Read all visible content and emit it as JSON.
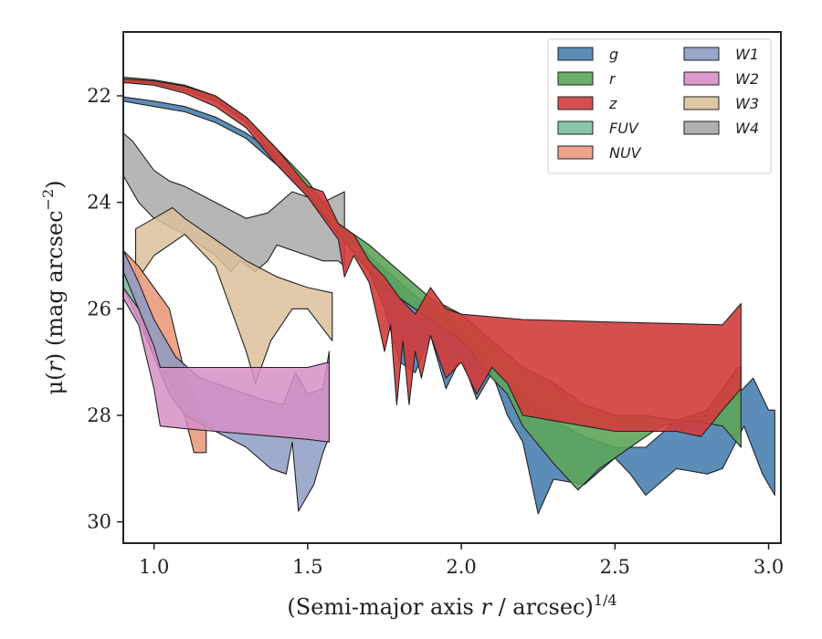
{
  "chart_data": {
    "type": "area",
    "xlabel_main": "(Semi-major axis ",
    "xlabel_var": "r",
    "xlabel_rest": " / arcsec)",
    "xlabel_sup": "1/4",
    "ylabel_main": "μ(",
    "ylabel_var": "r",
    "ylabel_rest": ") (mag arcsec",
    "ylabel_sup": "−2",
    "ylabel_end": ")",
    "xlim": [
      0.9,
      3.04
    ],
    "ylim": [
      30.4,
      20.8
    ],
    "x_ticks": [
      1.0,
      1.5,
      2.0,
      2.5,
      3.0
    ],
    "x_tick_labels": [
      "1.0",
      "1.5",
      "2.0",
      "2.5",
      "3.0"
    ],
    "y_ticks": [
      22,
      24,
      26,
      28,
      30
    ],
    "y_tick_labels": [
      "22",
      "24",
      "26",
      "28",
      "30"
    ],
    "legend_position": "top-right",
    "series": [
      {
        "name": "W4",
        "color": "#a9a9a9",
        "alpha": 0.85,
        "upper": [
          [
            0.9,
            22.7
          ],
          [
            0.93,
            22.85
          ],
          [
            1.0,
            23.4
          ],
          [
            1.05,
            23.6
          ],
          [
            1.1,
            23.7
          ],
          [
            1.2,
            24.0
          ],
          [
            1.3,
            24.3
          ],
          [
            1.37,
            24.2
          ],
          [
            1.45,
            23.8
          ],
          [
            1.55,
            24.0
          ],
          [
            1.62,
            23.8
          ]
        ],
        "lower": [
          [
            0.9,
            23.5
          ],
          [
            0.95,
            24.0
          ],
          [
            1.0,
            24.3
          ],
          [
            1.1,
            24.6
          ],
          [
            1.2,
            25.0
          ],
          [
            1.25,
            25.3
          ],
          [
            1.28,
            25.1
          ],
          [
            1.33,
            25.3
          ],
          [
            1.37,
            25.1
          ],
          [
            1.4,
            24.8
          ],
          [
            1.45,
            24.9
          ],
          [
            1.5,
            25.0
          ],
          [
            1.55,
            25.1
          ],
          [
            1.6,
            25.1
          ],
          [
            1.62,
            25.2
          ]
        ]
      },
      {
        "name": "W3",
        "color": "#dcc09a",
        "alpha": 0.85,
        "upper": [
          [
            0.94,
            24.5
          ],
          [
            1.0,
            24.3
          ],
          [
            1.06,
            24.1
          ],
          [
            1.1,
            24.3
          ],
          [
            1.2,
            24.7
          ],
          [
            1.3,
            25.1
          ],
          [
            1.4,
            25.4
          ],
          [
            1.5,
            25.6
          ],
          [
            1.58,
            25.7
          ]
        ],
        "lower": [
          [
            0.94,
            25.5
          ],
          [
            1.0,
            25.0
          ],
          [
            1.1,
            24.6
          ],
          [
            1.2,
            25.2
          ],
          [
            1.3,
            26.8
          ],
          [
            1.33,
            27.4
          ],
          [
            1.38,
            26.6
          ],
          [
            1.45,
            26.0
          ],
          [
            1.5,
            26.0
          ],
          [
            1.58,
            26.6
          ]
        ]
      },
      {
        "name": "FUV",
        "color": "#7fbfa5",
        "alpha": 0.9,
        "upper": [
          [
            0.9,
            25.2
          ],
          [
            0.95,
            25.8
          ],
          [
            1.0,
            26.3
          ],
          [
            1.05,
            26.9
          ],
          [
            1.1,
            27.3
          ]
        ],
        "lower": [
          [
            0.9,
            25.6
          ],
          [
            0.95,
            26.2
          ],
          [
            1.0,
            26.9
          ],
          [
            1.05,
            27.3
          ],
          [
            1.1,
            27.6
          ]
        ]
      },
      {
        "name": "NUV",
        "color": "#ea9a7d",
        "alpha": 0.9,
        "upper": [
          [
            0.9,
            24.9
          ],
          [
            0.95,
            25.2
          ],
          [
            1.0,
            25.6
          ],
          [
            1.05,
            26.0
          ],
          [
            1.1,
            27.2
          ],
          [
            1.17,
            28.3
          ]
        ],
        "lower": [
          [
            0.9,
            25.3
          ],
          [
            0.95,
            26.0
          ],
          [
            1.0,
            26.9
          ],
          [
            1.05,
            27.3
          ],
          [
            1.1,
            28.0
          ],
          [
            1.13,
            28.7
          ],
          [
            1.17,
            28.7
          ]
        ]
      },
      {
        "name": "W1",
        "color": "#8e9cc4",
        "alpha": 0.85,
        "upper": [
          [
            0.9,
            24.9
          ],
          [
            0.95,
            25.5
          ],
          [
            1.0,
            26.2
          ],
          [
            1.07,
            26.9
          ],
          [
            1.15,
            27.3
          ],
          [
            1.25,
            27.5
          ],
          [
            1.35,
            27.7
          ],
          [
            1.42,
            27.8
          ],
          [
            1.46,
            27.2
          ],
          [
            1.5,
            27.6
          ],
          [
            1.55,
            27.5
          ],
          [
            1.57,
            26.8
          ]
        ],
        "lower": [
          [
            0.9,
            25.3
          ],
          [
            0.95,
            26.0
          ],
          [
            1.0,
            26.9
          ],
          [
            1.05,
            27.6
          ],
          [
            1.1,
            28.0
          ],
          [
            1.2,
            28.3
          ],
          [
            1.3,
            28.6
          ],
          [
            1.38,
            29.0
          ],
          [
            1.43,
            29.1
          ],
          [
            1.45,
            28.5
          ],
          [
            1.47,
            29.8
          ],
          [
            1.52,
            29.3
          ],
          [
            1.55,
            28.7
          ],
          [
            1.57,
            28.4
          ]
        ]
      },
      {
        "name": "W2",
        "color": "#d78fc6",
        "alpha": 0.85,
        "upper": [
          [
            0.9,
            25.6
          ],
          [
            0.95,
            26.0
          ],
          [
            1.0,
            26.7
          ],
          [
            1.02,
            27.1
          ],
          [
            1.1,
            27.1
          ],
          [
            1.2,
            27.1
          ],
          [
            1.3,
            27.1
          ],
          [
            1.4,
            27.1
          ],
          [
            1.5,
            27.1
          ],
          [
            1.57,
            27.0
          ]
        ],
        "lower": [
          [
            0.9,
            25.8
          ],
          [
            0.95,
            26.3
          ],
          [
            1.0,
            27.5
          ],
          [
            1.02,
            28.2
          ],
          [
            1.1,
            28.25
          ],
          [
            1.2,
            28.3
          ],
          [
            1.3,
            28.35
          ],
          [
            1.4,
            28.4
          ],
          [
            1.5,
            28.45
          ],
          [
            1.57,
            28.5
          ]
        ]
      },
      {
        "name": "g",
        "color": "#4a7fb0",
        "alpha": 0.9,
        "upper": [
          [
            0.9,
            22.02
          ],
          [
            1.0,
            22.1
          ],
          [
            1.1,
            22.2
          ],
          [
            1.2,
            22.4
          ],
          [
            1.3,
            22.7
          ],
          [
            1.4,
            23.1
          ],
          [
            1.5,
            23.7
          ],
          [
            1.6,
            24.4
          ],
          [
            1.7,
            25.0
          ],
          [
            1.8,
            25.5
          ],
          [
            1.9,
            26.0
          ],
          [
            2.0,
            26.5
          ],
          [
            2.1,
            27.1
          ],
          [
            2.2,
            27.7
          ],
          [
            2.3,
            28.1
          ],
          [
            2.4,
            28.4
          ],
          [
            2.5,
            28.6
          ],
          [
            2.6,
            28.6
          ],
          [
            2.7,
            28.1
          ],
          [
            2.8,
            28.0
          ],
          [
            2.85,
            27.9
          ],
          [
            2.95,
            27.3
          ],
          [
            3.0,
            27.9
          ],
          [
            3.02,
            27.9
          ]
        ],
        "lower": [
          [
            0.9,
            22.1
          ],
          [
            1.0,
            22.2
          ],
          [
            1.1,
            22.3
          ],
          [
            1.2,
            22.5
          ],
          [
            1.3,
            22.8
          ],
          [
            1.4,
            23.3
          ],
          [
            1.5,
            23.9
          ],
          [
            1.6,
            24.6
          ],
          [
            1.7,
            25.3
          ],
          [
            1.75,
            26.0
          ],
          [
            1.8,
            27.0
          ],
          [
            1.85,
            27.2
          ],
          [
            1.9,
            26.5
          ],
          [
            1.95,
            27.5
          ],
          [
            2.0,
            26.9
          ],
          [
            2.05,
            27.7
          ],
          [
            2.1,
            27.2
          ],
          [
            2.15,
            28.0
          ],
          [
            2.2,
            28.5
          ],
          [
            2.25,
            29.85
          ],
          [
            2.3,
            29.2
          ],
          [
            2.4,
            29.3
          ],
          [
            2.5,
            28.8
          ],
          [
            2.55,
            29.1
          ],
          [
            2.6,
            29.5
          ],
          [
            2.7,
            29.0
          ],
          [
            2.8,
            29.1
          ],
          [
            2.85,
            29.0
          ],
          [
            2.92,
            28.2
          ],
          [
            2.98,
            29.1
          ],
          [
            3.02,
            29.5
          ]
        ]
      },
      {
        "name": "r",
        "color": "#5da55a",
        "alpha": 0.9,
        "upper": [
          [
            0.9,
            21.65
          ],
          [
            1.0,
            21.7
          ],
          [
            1.1,
            21.8
          ],
          [
            1.2,
            22.0
          ],
          [
            1.3,
            22.4
          ],
          [
            1.4,
            23.0
          ],
          [
            1.5,
            23.6
          ],
          [
            1.6,
            24.4
          ],
          [
            1.7,
            24.8
          ],
          [
            1.8,
            25.3
          ],
          [
            1.9,
            25.8
          ],
          [
            2.0,
            26.1
          ],
          [
            2.1,
            26.6
          ],
          [
            2.2,
            27.1
          ],
          [
            2.3,
            27.4
          ],
          [
            2.4,
            27.8
          ],
          [
            2.5,
            28.0
          ],
          [
            2.6,
            28.0
          ],
          [
            2.7,
            28.1
          ],
          [
            2.8,
            27.9
          ],
          [
            2.9,
            27.1
          ],
          [
            2.91,
            27.1
          ]
        ],
        "lower": [
          [
            0.9,
            21.72
          ],
          [
            1.0,
            21.77
          ],
          [
            1.1,
            21.9
          ],
          [
            1.2,
            22.1
          ],
          [
            1.3,
            22.5
          ],
          [
            1.4,
            23.2
          ],
          [
            1.5,
            23.8
          ],
          [
            1.6,
            24.6
          ],
          [
            1.7,
            25.3
          ],
          [
            1.8,
            25.8
          ],
          [
            1.9,
            26.2
          ],
          [
            2.0,
            26.6
          ],
          [
            2.1,
            27.3
          ],
          [
            2.15,
            27.6
          ],
          [
            2.2,
            28.2
          ],
          [
            2.3,
            28.9
          ],
          [
            2.38,
            29.4
          ],
          [
            2.45,
            29.0
          ],
          [
            2.55,
            28.6
          ],
          [
            2.65,
            28.2
          ],
          [
            2.75,
            28.1
          ],
          [
            2.85,
            28.2
          ],
          [
            2.91,
            28.6
          ]
        ]
      },
      {
        "name": "z",
        "color": "#d23c3c",
        "alpha": 0.9,
        "upper": [
          [
            0.9,
            21.68
          ],
          [
            1.0,
            21.72
          ],
          [
            1.1,
            21.82
          ],
          [
            1.2,
            22.0
          ],
          [
            1.3,
            22.4
          ],
          [
            1.4,
            23.0
          ],
          [
            1.5,
            23.7
          ],
          [
            1.55,
            23.8
          ],
          [
            1.6,
            24.4
          ],
          [
            1.65,
            24.6
          ],
          [
            1.7,
            25.1
          ],
          [
            1.75,
            25.4
          ],
          [
            1.8,
            25.8
          ],
          [
            1.85,
            26.1
          ],
          [
            1.9,
            25.6
          ],
          [
            1.95,
            26.0
          ],
          [
            2.0,
            26.1
          ],
          [
            2.2,
            26.2
          ],
          [
            2.5,
            26.25
          ],
          [
            2.85,
            26.3
          ],
          [
            2.91,
            25.9
          ]
        ],
        "lower": [
          [
            0.9,
            21.75
          ],
          [
            1.0,
            21.8
          ],
          [
            1.1,
            21.95
          ],
          [
            1.2,
            22.2
          ],
          [
            1.3,
            22.6
          ],
          [
            1.4,
            23.3
          ],
          [
            1.5,
            23.9
          ],
          [
            1.6,
            24.7
          ],
          [
            1.62,
            25.4
          ],
          [
            1.65,
            25.0
          ],
          [
            1.7,
            25.5
          ],
          [
            1.72,
            26.0
          ],
          [
            1.75,
            26.8
          ],
          [
            1.77,
            26.3
          ],
          [
            1.79,
            27.8
          ],
          [
            1.81,
            26.6
          ],
          [
            1.83,
            27.8
          ],
          [
            1.85,
            26.8
          ],
          [
            1.87,
            27.3
          ],
          [
            1.9,
            26.5
          ],
          [
            1.95,
            27.3
          ],
          [
            2.0,
            27.0
          ],
          [
            2.05,
            27.6
          ],
          [
            2.1,
            27.1
          ],
          [
            2.15,
            27.4
          ],
          [
            2.2,
            28.0
          ],
          [
            2.3,
            28.1
          ],
          [
            2.4,
            28.2
          ],
          [
            2.5,
            28.3
          ],
          [
            2.6,
            28.3
          ],
          [
            2.7,
            28.3
          ],
          [
            2.78,
            28.4
          ],
          [
            2.85,
            27.9
          ],
          [
            2.91,
            27.5
          ]
        ]
      }
    ]
  },
  "legend": {
    "column1": [
      "g",
      "r",
      "z",
      "FUV",
      "NUV"
    ],
    "column2": [
      "W1",
      "W2",
      "W3",
      "W4"
    ]
  }
}
